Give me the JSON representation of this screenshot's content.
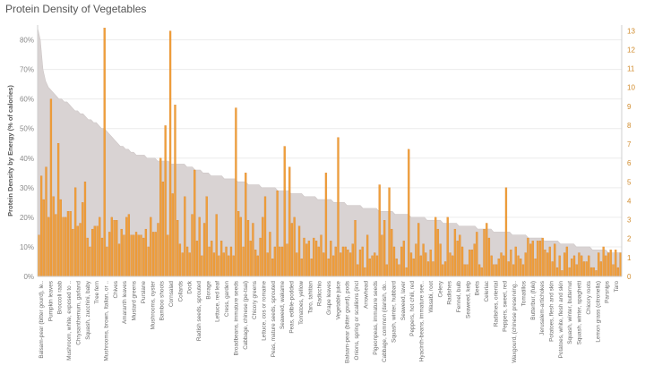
{
  "chart_data": {
    "type": "bar",
    "title": "Protein Density of Vegetables",
    "ylabel": "Protein Density by Energy (% of calories)",
    "y_left": {
      "ticks": [
        "0%",
        "10%",
        "20%",
        "30%",
        "40%",
        "50%",
        "60%",
        "70%",
        "80%"
      ],
      "range": [
        0,
        85
      ]
    },
    "y_right": {
      "ticks": [
        "0",
        "1",
        "2",
        "3",
        "4",
        "5",
        "6",
        "7",
        "8",
        "9",
        "10",
        "11",
        "12",
        "13"
      ],
      "range": [
        0,
        13.3
      ]
    },
    "grid": true,
    "colors": {
      "bars": "#f0a03c",
      "bar_edge": "#d97f22",
      "area": "#d9d3d3"
    },
    "area_series": [
      84,
      80,
      70,
      66,
      64,
      63,
      62,
      61,
      60,
      60,
      59,
      59,
      58,
      57,
      56,
      56,
      55,
      55,
      54,
      53,
      53,
      52,
      52,
      51,
      50,
      50,
      49,
      48,
      47,
      46,
      45,
      44,
      44,
      43,
      43,
      42,
      42,
      41,
      41,
      41,
      41,
      40,
      40,
      40,
      40,
      39,
      39,
      39,
      39,
      39,
      38,
      38,
      38,
      38,
      38,
      38,
      37,
      37,
      37,
      36,
      36,
      36,
      35,
      35,
      35,
      34,
      34,
      34,
      34,
      34,
      33,
      33,
      33,
      33,
      33,
      32,
      32,
      32,
      32,
      31,
      31,
      31,
      31,
      31,
      30,
      30,
      30,
      30,
      30,
      30,
      29,
      29,
      29,
      29,
      29,
      28,
      28,
      28,
      28,
      28,
      27,
      27,
      27,
      27,
      27,
      26,
      26,
      26,
      26,
      26,
      26,
      25,
      25,
      25,
      25,
      25,
      24,
      24,
      24,
      24,
      24,
      24,
      23,
      23,
      23,
      23,
      23,
      23,
      22,
      22,
      22,
      22,
      22,
      22,
      21,
      21,
      21,
      21,
      21,
      21,
      20,
      20,
      20,
      20,
      20,
      20,
      19,
      19,
      19,
      19,
      19,
      19,
      18,
      18,
      18,
      18,
      18,
      18,
      17,
      17,
      17,
      17,
      17,
      17,
      17,
      16,
      16,
      16,
      16,
      16,
      16,
      15,
      15,
      15,
      15,
      15,
      15,
      15,
      14,
      14,
      14,
      14,
      14,
      14,
      13,
      13,
      13,
      13,
      13,
      13,
      12,
      12,
      12,
      12,
      12,
      12,
      11,
      11,
      11,
      11,
      11,
      11,
      10,
      10,
      10,
      10,
      10,
      10,
      9,
      9,
      9,
      9,
      9,
      9,
      8,
      8,
      8,
      8,
      8,
      8
    ],
    "bar_values": [
      14,
      34,
      26,
      37,
      20,
      60,
      27,
      21,
      45,
      26,
      20,
      20,
      22,
      22,
      16,
      30,
      17,
      18,
      25,
      32,
      13,
      10,
      16,
      17,
      17,
      20,
      13,
      84,
      10,
      15,
      20,
      19,
      19,
      11,
      16,
      14,
      20,
      21,
      14,
      14,
      15,
      14,
      14,
      13,
      16,
      10,
      20,
      15,
      15,
      18,
      40,
      32,
      51,
      14,
      83,
      28,
      58,
      19,
      11,
      8,
      27,
      10,
      8,
      21,
      36,
      12,
      20,
      7,
      18,
      27,
      10,
      12,
      8,
      21,
      7,
      12,
      8,
      10,
      7,
      10,
      7,
      57,
      22,
      20,
      10,
      35,
      19,
      12,
      18,
      9,
      7,
      13,
      20,
      27,
      8,
      15,
      6,
      10,
      29,
      10,
      10,
      44,
      11,
      37,
      18,
      20,
      8,
      17,
      6,
      13,
      11,
      12,
      6,
      13,
      12,
      10,
      14,
      8,
      35,
      6,
      12,
      7,
      10,
      47,
      8,
      10,
      10,
      9,
      8,
      11,
      19,
      4,
      9,
      10,
      3,
      14,
      6,
      7,
      8,
      7,
      31,
      14,
      19,
      4,
      30,
      16,
      10,
      6,
      4,
      10,
      12,
      3,
      43,
      8,
      6,
      11,
      18,
      7,
      11,
      8,
      5,
      9,
      5,
      20,
      16,
      11,
      4,
      5,
      20,
      8,
      7,
      16,
      12,
      14,
      10,
      4,
      4,
      9,
      9,
      11,
      15,
      4,
      3,
      16,
      18,
      13,
      7,
      4,
      4,
      6,
      8,
      7,
      30,
      5,
      9,
      4,
      10,
      7,
      6,
      4,
      8,
      13,
      11,
      12,
      6,
      12,
      12,
      13,
      9,
      8,
      10,
      5,
      11,
      3,
      7,
      2,
      8,
      10,
      3,
      6,
      7,
      4,
      8,
      7,
      5,
      5,
      7,
      3,
      3,
      2,
      8,
      5,
      10,
      7,
      8,
      9,
      4,
      9,
      3,
      8
    ],
    "categories": [
      "Balsam-pear (bitter gourd), le..",
      "Pumpkin leaves",
      "Broccoli raab",
      "Mushroom, white, exposed to ..",
      "Chrysanthemum, garland",
      "Squash, zucchini, baby",
      "Tree fern",
      "Mushrooms, brown, Italian, or ..",
      "Chives",
      "Amaranth leaves",
      "Mustard greens",
      "Purslane",
      "Mushrooms, oyster",
      "Bamboo shoots",
      "Cornsalad",
      "Collards",
      "Dock",
      "Radish seeds, sprouted",
      "Borage",
      "Lettuce, red leaf",
      "Cress, garden",
      "Broadbeans, immature seeds",
      "Cabbage, chinese (pe-tsai)",
      "Chicory greens",
      "Lettuce, cos or romaine",
      "Peas, mature seeds, sprouted",
      "Seaweed, wakame",
      "Peas, edible-podded",
      "Tomatoes, yellow",
      "Taro, tahitian",
      "Radicchio",
      "Grape leaves",
      "Vegetable juice",
      "Balsam-pear (bitter gourd), pods",
      "Onions, spring or scallions (incl",
      "Arrowhead",
      "Pigeonpeas, immature seeds",
      "Cabbage, common (danish, do..",
      "Squash, winter, hubbard",
      "Seaweed, laver",
      "Peppers, hot chili, red",
      "Hyacinth-beans, immature see..",
      "Wasabi, root",
      "Celery",
      "Radishes",
      "Fennel, bulb",
      "Seaweed, kelp",
      "Beets",
      "Celeriac",
      "Radishes, oriental",
      "Peppers, sweet, red",
      "Waxgourd, (chinese preserving..",
      "Tomatillos",
      "Butterbur, (fuki)",
      "Jerusalem-artichokes",
      "Potatoes, flesh and skin",
      "Potatoes, white, flesh and skin",
      "Squash, winter, butternut",
      "Squash, winter, spaghetti",
      "Chicory roots",
      "Lemon grass (citronella)",
      "Parsnips",
      "Taro"
    ]
  }
}
